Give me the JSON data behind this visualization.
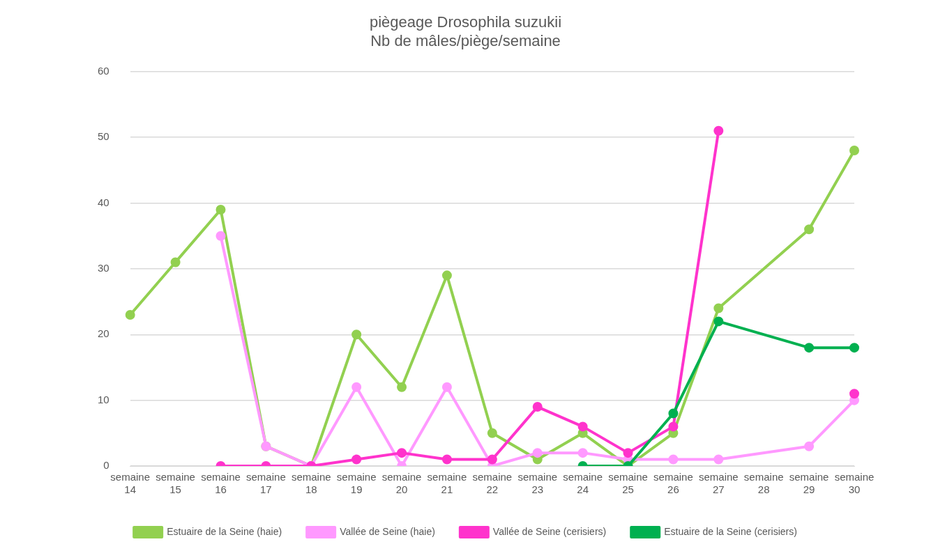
{
  "chart_data": {
    "type": "line",
    "title": "piègeage Drosophila suzukii",
    "subtitle": "Nb de mâles/piège/semaine",
    "categories": [
      "semaine 14",
      "semaine 15",
      "semaine 16",
      "semaine 17",
      "semaine 18",
      "semaine 19",
      "semaine 20",
      "semaine 21",
      "semaine 22",
      "semaine 23",
      "semaine 24",
      "semaine 25",
      "semaine 26",
      "semaine 27",
      "semaine 28",
      "semaine 29",
      "semaine 30"
    ],
    "series": [
      {
        "name": "Estuaire de la Seine (haie)",
        "color": "#92d050",
        "x": [
          "semaine 14",
          "semaine 15",
          "semaine 16",
          "semaine 17",
          "semaine 18",
          "semaine 19",
          "semaine 20",
          "semaine 21",
          "semaine 22",
          "semaine 23",
          "semaine 24",
          "semaine 25",
          "semaine 26",
          "semaine 27",
          "semaine 29",
          "semaine 30"
        ],
        "values": [
          23,
          31,
          39,
          3,
          0,
          20,
          12,
          29,
          5,
          1,
          5,
          0,
          5,
          24,
          36,
          48
        ]
      },
      {
        "name": "Vallée de Seine (haie)",
        "color": "#ff99ff",
        "x": [
          "semaine 16",
          "semaine 17",
          "semaine 18",
          "semaine 19",
          "semaine 20",
          "semaine 21",
          "semaine 22",
          "semaine 23",
          "semaine 24",
          "semaine 25",
          "semaine 26",
          "semaine 27",
          "semaine 29",
          "semaine 30"
        ],
        "values": [
          35,
          3,
          0,
          12,
          0,
          12,
          0,
          2,
          2,
          1,
          1,
          1,
          3,
          10
        ]
      },
      {
        "name": "Vallée de Seine (cerisiers)",
        "color": "#ff33cc",
        "values": [
          null,
          null,
          0,
          0,
          0,
          1,
          2,
          1,
          1,
          9,
          6,
          2,
          6,
          51,
          null,
          null,
          11
        ]
      },
      {
        "name": "Estuaire de la Seine (cerisiers)",
        "color": "#00b050",
        "x": [
          "semaine 24",
          "semaine 25",
          "semaine 26",
          "semaine 27",
          "semaine 29",
          "semaine 30"
        ],
        "values": [
          0,
          0,
          8,
          22,
          18,
          18
        ]
      }
    ],
    "ylim": [
      0,
      60
    ],
    "yticks": [
      0,
      10,
      20,
      30,
      40,
      50,
      60
    ],
    "grid": "y",
    "legend": "bottom",
    "marker": "circle",
    "line_style": "solid"
  }
}
